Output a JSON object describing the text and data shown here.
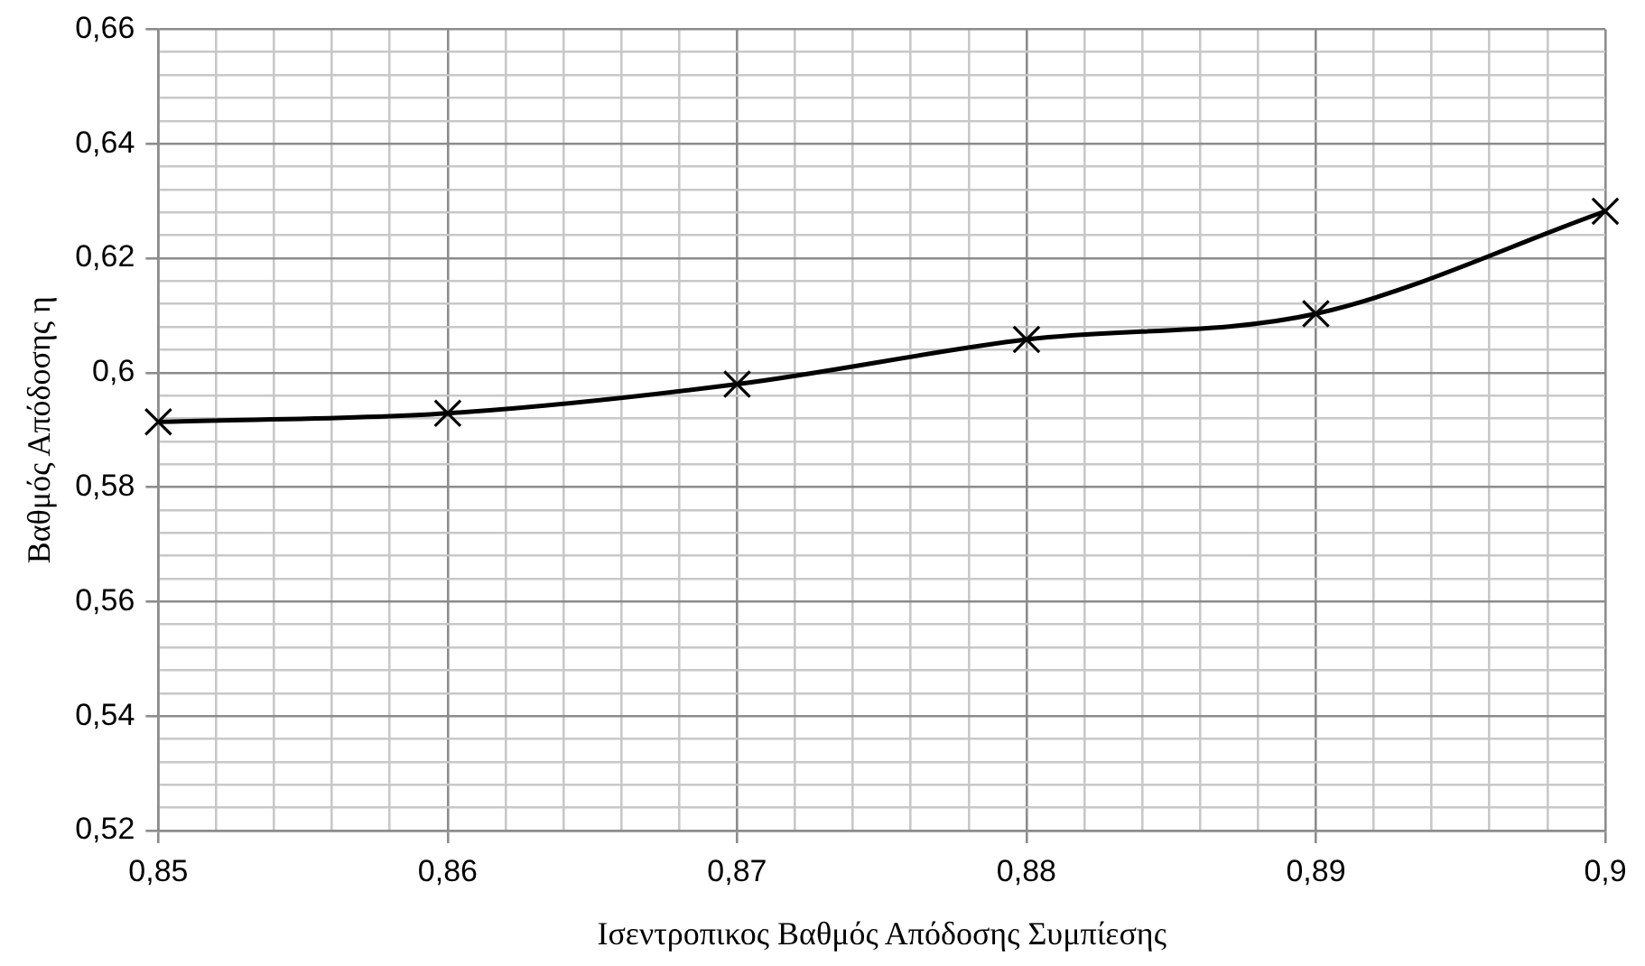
{
  "chart_data": {
    "type": "line",
    "xlabel": "Ισεντροπικος Βαθμός Απόδοσης Συμπίεσης",
    "ylabel": "Βαθμός Απόδοσης η",
    "x": [
      0.85,
      0.86,
      0.87,
      0.88,
      0.89,
      0.9
    ],
    "series": [
      {
        "color": "#000000",
        "values": [
          0.5914,
          0.5929,
          0.598,
          0.6058,
          0.6103,
          0.6282
        ]
      }
    ],
    "xlim": [
      0.85,
      0.9
    ],
    "xticks": [
      {
        "value": 0.85,
        "label": "0,85"
      },
      {
        "value": 0.852,
        "label": null
      },
      {
        "value": 0.854,
        "label": null
      },
      {
        "value": 0.856,
        "label": null
      },
      {
        "value": 0.858,
        "label": null
      },
      {
        "value": 0.86,
        "label": "0,86"
      },
      {
        "value": 0.862,
        "label": null
      },
      {
        "value": 0.864,
        "label": null
      },
      {
        "value": 0.866,
        "label": null
      },
      {
        "value": 0.868,
        "label": null
      },
      {
        "value": 0.87,
        "label": "0,87"
      },
      {
        "value": 0.872,
        "label": null
      },
      {
        "value": 0.874,
        "label": null
      },
      {
        "value": 0.876,
        "label": null
      },
      {
        "value": 0.878,
        "label": null
      },
      {
        "value": 0.88,
        "label": "0,88"
      },
      {
        "value": 0.882,
        "label": null
      },
      {
        "value": 0.884,
        "label": null
      },
      {
        "value": 0.886,
        "label": null
      },
      {
        "value": 0.888,
        "label": null
      },
      {
        "value": 0.89,
        "label": "0,89"
      },
      {
        "value": 0.892,
        "label": null
      },
      {
        "value": 0.894,
        "label": null
      },
      {
        "value": 0.896,
        "label": null
      },
      {
        "value": 0.898,
        "label": null
      },
      {
        "value": 0.9,
        "label": "0,9"
      }
    ],
    "ylim": [
      0.52,
      0.66
    ],
    "yticks": [
      {
        "value": 0.52,
        "label": "0,52"
      },
      {
        "value": 0.524,
        "label": null
      },
      {
        "value": 0.528,
        "label": null
      },
      {
        "value": 0.532,
        "label": null
      },
      {
        "value": 0.536,
        "label": null
      },
      {
        "value": 0.54,
        "label": "0,54"
      },
      {
        "value": 0.544,
        "label": null
      },
      {
        "value": 0.548,
        "label": null
      },
      {
        "value": 0.552,
        "label": null
      },
      {
        "value": 0.556,
        "label": null
      },
      {
        "value": 0.56,
        "label": "0,56"
      },
      {
        "value": 0.564,
        "label": null
      },
      {
        "value": 0.568,
        "label": null
      },
      {
        "value": 0.572,
        "label": null
      },
      {
        "value": 0.576,
        "label": null
      },
      {
        "value": 0.58,
        "label": "0,58"
      },
      {
        "value": 0.584,
        "label": null
      },
      {
        "value": 0.588,
        "label": null
      },
      {
        "value": 0.592,
        "label": null
      },
      {
        "value": 0.596,
        "label": null
      },
      {
        "value": 0.6,
        "label": "0,6"
      },
      {
        "value": 0.604,
        "label": null
      },
      {
        "value": 0.608,
        "label": null
      },
      {
        "value": 0.612,
        "label": null
      },
      {
        "value": 0.616,
        "label": null
      },
      {
        "value": 0.62,
        "label": "0,62"
      },
      {
        "value": 0.624,
        "label": null
      },
      {
        "value": 0.628,
        "label": null
      },
      {
        "value": 0.632,
        "label": null
      },
      {
        "value": 0.636,
        "label": null
      },
      {
        "value": 0.64,
        "label": "0,64"
      },
      {
        "value": 0.644,
        "label": null
      },
      {
        "value": 0.648,
        "label": null
      },
      {
        "value": 0.652,
        "label": null
      },
      {
        "value": 0.656,
        "label": null
      },
      {
        "value": 0.66,
        "label": "0,66"
      }
    ],
    "grid": true,
    "marker": "cross",
    "line_style": "solid"
  }
}
